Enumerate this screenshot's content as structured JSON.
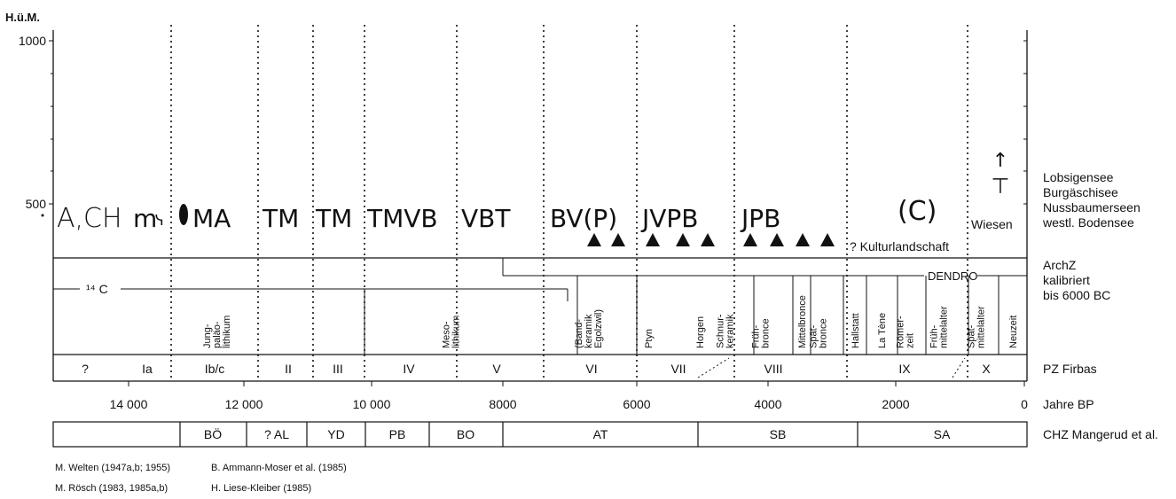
{
  "y_axis": {
    "title": "H.ü.M.",
    "ticks": [
      {
        "label": "1000",
        "value": 1000
      },
      {
        "label": "500",
        "value": 500
      }
    ]
  },
  "time_axis": {
    "ticks": [
      {
        "label": "14 000",
        "value": 14000
      },
      {
        "label": "12 000",
        "value": 12000
      },
      {
        "label": "10 000",
        "value": 10000
      },
      {
        "label": "8000",
        "value": 8000
      },
      {
        "label": "6000",
        "value": 6000
      },
      {
        "label": "4000",
        "value": 4000
      },
      {
        "label": "2000",
        "value": 2000
      },
      {
        "label": "0",
        "value": 0
      }
    ]
  },
  "symbol_rows": {
    "symbols": [
      {
        "text": "A,CH",
        "at_bp": 14500
      },
      {
        "text": "m",
        "at_bp": 13800
      },
      {
        "text": "MA",
        "at_bp": 12500
      },
      {
        "text": "TM",
        "at_bp": 11300
      },
      {
        "text": "TM",
        "at_bp": 10400
      },
      {
        "text": "TMVB",
        "at_bp": 9400
      },
      {
        "text": "VBT",
        "at_bp": 8000
      },
      {
        "text": "BV(P)",
        "at_bp": 6400
      },
      {
        "text": "JVPB",
        "at_bp": 5300
      },
      {
        "text": "JPB",
        "at_bp": 3800
      },
      {
        "text": "(C)",
        "at_bp": 1900
      }
    ],
    "triangles_bp": [
      6750,
      6350,
      5800,
      5200,
      4700,
      4000,
      3400,
      2850,
      2300
    ],
    "wiesen": "Wiesen",
    "kulturlandschaft": "? Kulturlandschaft"
  },
  "archaeology": {
    "c14_label": "¹⁴ C",
    "dendro_label": "DENDRO",
    "periods": [
      "Jung-\npaläo-\nlithikum",
      "Meso-\nlithikum",
      "(Band-\nkeramik\nEgolzwil)",
      "Ptyn",
      "Horgen",
      "Schnur-\nkeramik",
      "Früh-\nbronce",
      "Mittelbronce",
      "Spät-\nbronce",
      "Hallstatt",
      "La Tène",
      "Römer-\nzeit",
      "Früh-\nmittelalter",
      "Spät-\nmittelalter",
      "Neuzeit"
    ]
  },
  "firbas_zones": [
    "?",
    "Ia",
    "Ib/c",
    "II",
    "III",
    "IV",
    "V",
    "VI",
    "VII",
    "VIII",
    "IX",
    "X"
  ],
  "chz_zones": [
    "BÖ",
    "? AL",
    "YD",
    "PB",
    "BO",
    "AT",
    "SB",
    "SA"
  ],
  "right_labels": {
    "lakes": [
      "Lobsigensee",
      "Burgäschisee",
      "Nussbaumerseen",
      "westl. Bodensee"
    ],
    "archz": [
      "ArchZ",
      "kalibriert",
      "bis 6000 BC"
    ],
    "firbas": "PZ Firbas",
    "jahre": "Jahre BP",
    "chz": "CHZ Mangerud et al."
  },
  "references": [
    "M. Welten (1947a,b; 1955)",
    "B. Ammann-Moser et al. (1985)",
    "M. Rösch (1983, 1985a,b)",
    "H. Liese-Kleiber (1985)"
  ]
}
